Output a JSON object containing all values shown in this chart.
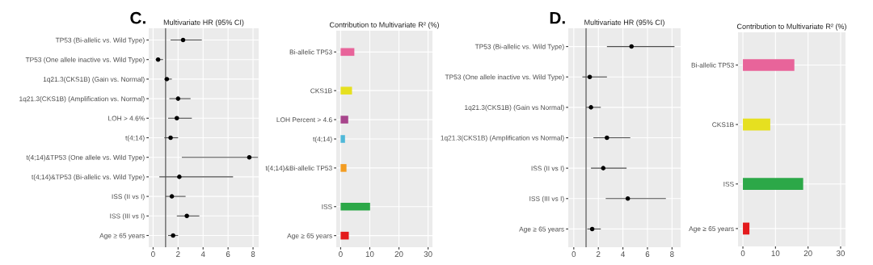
{
  "chart_data": [
    {
      "type": "scatter",
      "orientation": "horizontal",
      "title": "Multivariate HR (95% CI)",
      "annotations": [
        "C."
      ],
      "categories": [
        "TP53 (Bi-allelic vs. Wild Type)",
        "TP53 (One allele inactive vs. Wild Type)",
        "1q21.3(CKS1B) (Gain vs. Normal)",
        "1q21.3(CKS1B) (Amplification vs. Normal)",
        "LOH > 4.6%",
        "t(4;14)",
        "t(4;14)&TP53 (One allele vs. Wild Type)",
        "t(4;14)&TP53 (Bi-allelic vs. Wild Type)",
        "ISS (II vs I)",
        "ISS (III vs I)",
        "Age ≥ 65 years"
      ],
      "values": [
        2.4,
        0.4,
        1.1,
        2.0,
        1.9,
        1.4,
        7.7,
        2.1,
        1.5,
        2.7,
        1.6
      ],
      "errors": [
        [
          1.4,
          3.9
        ],
        [
          0.2,
          0.8
        ],
        [
          0.9,
          1.5
        ],
        [
          1.3,
          3.0
        ],
        [
          1.2,
          3.1
        ],
        [
          0.9,
          2.0
        ],
        [
          2.3,
          8.4
        ],
        [
          0.5,
          6.4
        ],
        [
          1.0,
          2.6
        ],
        [
          1.9,
          3.7
        ],
        [
          1.2,
          2.0
        ]
      ],
      "color": "#000000",
      "marker": "circle",
      "ref_lines": [
        {
          "axis": "x",
          "value": 1,
          "color": "#595959"
        }
      ],
      "xlim": [
        -0.35,
        8.45
      ],
      "xticks": [
        0,
        2,
        4,
        6,
        8
      ],
      "grid": true,
      "legend": false
    },
    {
      "type": "bar",
      "orientation": "horizontal",
      "title": "Contribution to Multivariate R² (%)",
      "categories": [
        null,
        "Bi-allelic TP53",
        null,
        null,
        null,
        "CKS1B",
        null,
        null,
        "LOH Percent > 4.6",
        null,
        "t(4;14)",
        null,
        null,
        "t(4;14)&Bi-allelic TP53",
        null,
        null,
        null,
        "ISS",
        null,
        null,
        "Age ≥ 65 years"
      ],
      "values": [
        null,
        4.7,
        null,
        null,
        null,
        3.9,
        null,
        null,
        2.6,
        null,
        1.5,
        null,
        null,
        2.0,
        null,
        null,
        null,
        10.1,
        null,
        null,
        2.8
      ],
      "colors": [
        null,
        "#e8649a",
        null,
        null,
        null,
        "#e6e020",
        null,
        null,
        "#a8458c",
        null,
        "#4fb8d8",
        null,
        null,
        "#f39c20",
        null,
        null,
        null,
        "#2ca848",
        null,
        null,
        "#e31a1c"
      ],
      "xlim": [
        -1.5,
        31.5
      ],
      "xticks": [
        0,
        10,
        20,
        30
      ],
      "grid": true,
      "legend": false
    },
    {
      "type": "scatter",
      "orientation": "horizontal",
      "title": "Multivariate HR (95% CI)",
      "annotations": [
        "D."
      ],
      "categories": [
        "TP53 (Bi-allelic vs. Wild Type)",
        "TP53 (One allele inactive vs. Wild Type)",
        "1q21.3(CKS1B) (Gain vs Normal)",
        "1q21.3(CKS1B) (Amplification vs Normal)",
        "ISS (II vs I)",
        "ISS (III vs I)",
        "Age ≥ 65 years"
      ],
      "values": [
        4.7,
        1.3,
        1.4,
        2.7,
        2.4,
        4.4,
        1.5
      ],
      "errors": [
        [
          2.7,
          8.2
        ],
        [
          0.7,
          2.7
        ],
        [
          1.0,
          2.2
        ],
        [
          1.6,
          4.6
        ],
        [
          1.4,
          4.3
        ],
        [
          2.6,
          7.5
        ],
        [
          1.1,
          2.2
        ]
      ],
      "color": "#000000",
      "marker": "circle",
      "ref_lines": [
        {
          "axis": "x",
          "value": 1,
          "color": "#595959"
        }
      ],
      "xlim": [
        -0.45,
        8.7
      ],
      "xticks": [
        0,
        2,
        4,
        6,
        8
      ],
      "grid": true,
      "legend": false
    },
    {
      "type": "bar",
      "orientation": "horizontal",
      "title": "Contribution to Multivariate R² (%)",
      "categories": [
        null,
        "Bi-allelic TP53",
        null,
        null,
        null,
        "CKS1B",
        null,
        null,
        null,
        "ISS",
        null,
        null,
        "Age ≥ 65 years"
      ],
      "values": [
        null,
        15.8,
        null,
        null,
        null,
        8.4,
        null,
        null,
        null,
        18.5,
        null,
        null,
        2.0
      ],
      "colors": [
        null,
        "#e8649a",
        null,
        null,
        null,
        "#e6e020",
        null,
        null,
        null,
        "#2ca848",
        null,
        null,
        "#e31a1c"
      ],
      "xlim": [
        -1.5,
        31.5
      ],
      "xticks": [
        0,
        10,
        20,
        30
      ],
      "grid": true,
      "legend": false
    }
  ]
}
